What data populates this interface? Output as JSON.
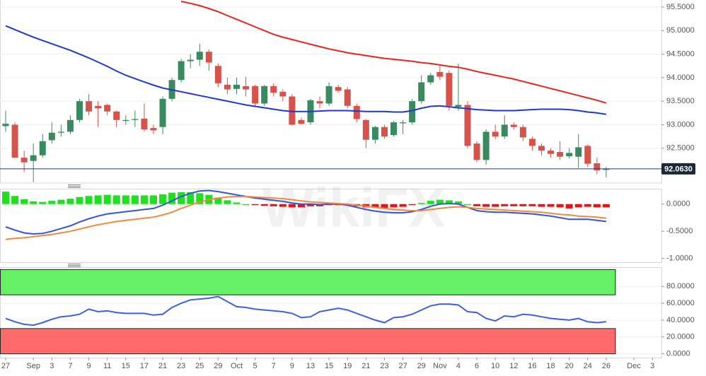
{
  "chart_data": [
    {
      "type": "candlestick",
      "watermark": "WikiFX",
      "categories": [
        "27",
        null,
        null,
        "Sep",
        null,
        "3",
        null,
        "7",
        null,
        "9",
        null,
        "11",
        null,
        "15",
        null,
        "17",
        null,
        "21",
        null,
        "23",
        null,
        "25",
        null,
        "29",
        null,
        "Oct",
        null,
        "5",
        null,
        "7",
        null,
        "9",
        null,
        "13",
        null,
        "15",
        null,
        "19",
        null,
        "21",
        null,
        "23",
        null,
        "27",
        null,
        "29",
        null,
        "Nov",
        null,
        "4",
        null,
        "6",
        null,
        "10",
        null,
        "12",
        null,
        "16",
        null,
        "18",
        null,
        "20",
        null,
        "24",
        null,
        "26",
        null,
        null,
        "Dec",
        null,
        "3"
      ],
      "open": [
        92.97,
        93.0,
        92.3,
        92.23,
        92.35,
        92.67,
        92.83,
        92.85,
        93.1,
        93.5,
        93.4,
        93.42,
        93.28,
        93.08,
        93.1,
        93.13,
        92.93,
        92.95,
        93.55,
        93.95,
        94.35,
        94.38,
        94.55,
        94.25,
        93.85,
        93.76,
        93.82,
        93.82,
        93.45,
        93.82,
        93.7,
        93.6,
        93.1,
        93.05,
        93.5,
        93.45,
        93.8,
        93.75,
        93.4,
        93.1,
        92.68,
        92.95,
        92.78,
        93.03,
        93.05,
        93.5,
        93.9,
        94.12,
        94.1,
        93.38,
        93.42,
        92.6,
        92.25,
        92.85,
        92.75,
        93.0,
        92.95,
        92.7,
        92.55,
        92.45,
        92.42,
        92.33,
        92.32,
        92.55,
        92.18,
        92.04,
        null,
        null,
        null,
        null,
        null
      ],
      "high": [
        93.3,
        93.05,
        92.45,
        92.6,
        92.8,
        93.05,
        93.0,
        93.2,
        93.55,
        93.65,
        93.5,
        93.45,
        93.3,
        93.2,
        93.3,
        93.45,
        93.0,
        93.6,
        94.0,
        94.4,
        94.5,
        94.72,
        94.6,
        94.3,
        94.0,
        94.0,
        94.02,
        93.85,
        93.85,
        93.88,
        93.75,
        93.65,
        93.15,
        93.55,
        93.6,
        93.9,
        93.85,
        93.8,
        93.45,
        93.12,
        92.98,
        93.0,
        93.08,
        93.1,
        93.55,
        94.05,
        94.1,
        94.25,
        94.15,
        94.3,
        93.5,
        92.65,
        92.9,
        93.0,
        93.2,
        93.05,
        93.0,
        92.75,
        92.6,
        92.5,
        92.65,
        92.5,
        92.8,
        92.58,
        92.3,
        92.1,
        null,
        null,
        null,
        null,
        null
      ],
      "low": [
        92.85,
        92.3,
        92.0,
        91.78,
        92.3,
        92.6,
        92.75,
        92.8,
        93.05,
        93.2,
        92.95,
        93.2,
        92.95,
        93.0,
        92.95,
        92.85,
        92.8,
        92.8,
        93.5,
        93.9,
        94.2,
        94.25,
        94.15,
        93.8,
        93.65,
        93.65,
        93.6,
        93.4,
        93.4,
        93.6,
        93.5,
        92.98,
        93.0,
        93.0,
        93.35,
        93.4,
        93.68,
        93.35,
        93.05,
        92.5,
        92.6,
        92.7,
        92.75,
        92.8,
        93.0,
        93.45,
        93.85,
        93.95,
        93.3,
        93.3,
        92.5,
        92.2,
        92.15,
        92.7,
        92.7,
        92.9,
        92.65,
        92.45,
        92.35,
        92.3,
        92.25,
        92.28,
        92.08,
        92.1,
        91.95,
        91.88,
        null,
        null,
        null,
        null,
        null
      ],
      "close": [
        93.02,
        92.3,
        92.2,
        92.35,
        92.65,
        92.83,
        92.85,
        93.1,
        93.5,
        93.28,
        93.35,
        93.28,
        93.1,
        93.1,
        93.12,
        92.9,
        92.88,
        93.55,
        93.95,
        94.35,
        94.38,
        94.55,
        94.32,
        93.88,
        93.75,
        93.85,
        93.75,
        93.45,
        93.82,
        93.68,
        93.6,
        93.0,
        93.02,
        93.52,
        93.45,
        93.82,
        93.72,
        93.4,
        93.12,
        92.68,
        92.95,
        92.75,
        93.05,
        93.05,
        93.5,
        93.9,
        94.05,
        94.02,
        93.4,
        93.42,
        92.55,
        92.25,
        92.85,
        92.75,
        93.0,
        92.95,
        92.73,
        92.55,
        92.45,
        92.38,
        92.32,
        92.4,
        92.52,
        92.17,
        92.03,
        92.06,
        null,
        null,
        null,
        null,
        null
      ],
      "up_color": "#3a8a5f",
      "down_color": "#d6534c",
      "overlays": [
        {
          "color": "#2038d0",
          "values": [
            95.1,
            95.02,
            94.94,
            94.86,
            94.79,
            94.72,
            94.65,
            94.58,
            94.5,
            94.42,
            94.33,
            94.24,
            94.14,
            94.05,
            93.98,
            93.91,
            93.84,
            93.78,
            93.74,
            93.7,
            93.66,
            93.62,
            93.58,
            93.54,
            93.5,
            93.46,
            93.42,
            93.39,
            93.36,
            93.33,
            93.3,
            93.28,
            93.28,
            93.28,
            93.29,
            93.3,
            93.3,
            93.3,
            93.29,
            93.28,
            93.28,
            93.28,
            93.27,
            93.27,
            93.3,
            93.35,
            93.39,
            93.4,
            93.38,
            93.36,
            93.34,
            93.32,
            93.31,
            93.3,
            93.3,
            93.3,
            93.31,
            93.32,
            93.33,
            93.33,
            93.33,
            93.32,
            93.3,
            93.27,
            93.25,
            93.22,
            null,
            null,
            null,
            null,
            null
          ]
        },
        {
          "color": "#e8241e",
          "values": [
            null,
            null,
            null,
            null,
            null,
            null,
            null,
            null,
            null,
            null,
            null,
            null,
            null,
            null,
            null,
            null,
            null,
            null,
            null,
            95.62,
            95.58,
            95.53,
            95.47,
            95.4,
            95.32,
            95.24,
            95.16,
            95.08,
            95.0,
            94.92,
            94.86,
            94.81,
            94.76,
            94.71,
            94.66,
            94.61,
            94.57,
            94.53,
            94.5,
            94.47,
            94.44,
            94.41,
            94.39,
            94.37,
            94.35,
            94.32,
            94.3,
            94.27,
            94.24,
            94.22,
            94.18,
            94.13,
            94.09,
            94.05,
            94.01,
            93.97,
            93.92,
            93.87,
            93.82,
            93.77,
            93.72,
            93.67,
            93.62,
            93.57,
            93.52,
            93.46,
            null,
            null,
            null,
            null,
            null
          ]
        }
      ],
      "last_price": {
        "value": 92.063,
        "label": "92.0630"
      },
      "ylim": [
        91.76,
        95.65
      ],
      "yticks": [
        {
          "value": 92.5,
          "label": "92.5000"
        },
        {
          "value": 93,
          "label": "93.0000"
        },
        {
          "value": 93.5,
          "label": "93.5000"
        },
        {
          "value": 94,
          "label": "94.0000"
        },
        {
          "value": 94.5,
          "label": "94.5000"
        },
        {
          "value": 95,
          "label": "95.0000"
        },
        {
          "value": 95.5,
          "label": "95.5000"
        }
      ],
      "grid": true
    },
    {
      "type": "macd",
      "histogram": {
        "up_color": "#1fe01f",
        "down_color": "#ee1111",
        "values": [
          0.23,
          0.15,
          0.09,
          0.05,
          0.04,
          0.06,
          0.08,
          0.1,
          0.13,
          0.15,
          0.16,
          0.17,
          0.16,
          0.16,
          0.16,
          0.16,
          0.16,
          0.18,
          0.21,
          0.22,
          0.22,
          0.2,
          0.17,
          0.12,
          0.07,
          0.03,
          0.0,
          -0.02,
          -0.03,
          -0.04,
          -0.05,
          -0.06,
          -0.06,
          -0.04,
          -0.04,
          -0.02,
          -0.01,
          -0.02,
          -0.04,
          -0.06,
          -0.07,
          -0.07,
          -0.06,
          -0.05,
          -0.02,
          0.02,
          0.06,
          0.08,
          0.07,
          0.05,
          0.0,
          -0.04,
          -0.05,
          -0.05,
          -0.04,
          -0.04,
          -0.04,
          -0.04,
          -0.05,
          -0.05,
          -0.06,
          -0.08,
          -0.06,
          -0.05,
          -0.06,
          -0.06,
          null,
          null,
          null,
          null,
          null
        ]
      },
      "series": [
        {
          "color": "#3553dd",
          "values": [
            -0.42,
            -0.48,
            -0.53,
            -0.55,
            -0.54,
            -0.5,
            -0.45,
            -0.4,
            -0.33,
            -0.27,
            -0.22,
            -0.18,
            -0.16,
            -0.14,
            -0.12,
            -0.1,
            -0.08,
            -0.02,
            0.06,
            0.14,
            0.2,
            0.24,
            0.25,
            0.23,
            0.2,
            0.17,
            0.14,
            0.11,
            0.09,
            0.07,
            0.05,
            0.02,
            0.0,
            0.0,
            -0.01,
            0.0,
            0.0,
            -0.02,
            -0.06,
            -0.1,
            -0.13,
            -0.15,
            -0.16,
            -0.16,
            -0.14,
            -0.1,
            -0.04,
            0.0,
            0.01,
            0.0,
            -0.06,
            -0.12,
            -0.14,
            -0.15,
            -0.15,
            -0.16,
            -0.17,
            -0.18,
            -0.2,
            -0.22,
            -0.25,
            -0.28,
            -0.28,
            -0.28,
            -0.3,
            -0.32,
            null,
            null,
            null,
            null,
            null
          ]
        },
        {
          "color": "#f08a3c",
          "values": [
            -0.65,
            -0.63,
            -0.62,
            -0.6,
            -0.58,
            -0.56,
            -0.53,
            -0.5,
            -0.46,
            -0.42,
            -0.38,
            -0.35,
            -0.32,
            -0.3,
            -0.28,
            -0.26,
            -0.24,
            -0.2,
            -0.15,
            -0.08,
            -0.02,
            0.04,
            0.08,
            0.11,
            0.13,
            0.14,
            0.14,
            0.13,
            0.12,
            0.11,
            0.1,
            0.08,
            0.06,
            0.04,
            0.03,
            0.02,
            0.01,
            0.0,
            -0.02,
            -0.04,
            -0.06,
            -0.08,
            -0.1,
            -0.11,
            -0.12,
            -0.12,
            -0.1,
            -0.08,
            -0.06,
            -0.05,
            -0.06,
            -0.08,
            -0.09,
            -0.1,
            -0.11,
            -0.12,
            -0.13,
            -0.14,
            -0.15,
            -0.17,
            -0.19,
            -0.2,
            -0.22,
            -0.23,
            -0.24,
            -0.26,
            null,
            null,
            null,
            null,
            null
          ]
        }
      ],
      "ylim": [
        -1.07,
        0.27
      ],
      "yticks": [
        {
          "value": -1,
          "label": "-1.0000"
        },
        {
          "value": -0.5,
          "label": "-0.5000"
        },
        {
          "value": 0,
          "label": "0.0000"
        }
      ],
      "grid": false
    },
    {
      "type": "line",
      "zones": [
        {
          "from": 70,
          "to": 100,
          "color": "#66f066"
        },
        {
          "from": 0,
          "to": 30,
          "color": "#ff6b6b"
        }
      ],
      "series": [
        {
          "color": "#3f5fe0",
          "values": [
            42,
            38,
            35,
            34,
            37,
            41,
            44,
            45,
            47,
            53,
            50,
            51,
            49,
            48,
            48,
            48,
            46,
            47,
            55,
            60,
            64,
            65,
            66,
            68,
            62,
            56,
            55,
            53,
            52,
            51,
            50,
            48,
            43,
            44,
            50,
            52,
            54,
            52,
            48,
            44,
            40,
            37,
            43,
            44,
            47,
            52,
            57,
            59,
            59,
            58,
            50,
            49,
            42,
            39,
            45,
            44,
            47,
            46,
            44,
            42,
            41,
            40,
            42,
            38,
            37,
            38,
            null,
            null,
            null,
            null,
            null
          ]
        }
      ],
      "ylim": [
        -4.5,
        102
      ],
      "yticks": [
        {
          "value": 0,
          "label": "0.0000"
        },
        {
          "value": 20,
          "label": "20.0000"
        },
        {
          "value": 40,
          "label": "40.0000"
        },
        {
          "value": 60,
          "label": "60.0000"
        },
        {
          "value": 80,
          "label": "80.0000"
        }
      ],
      "grid": true
    }
  ]
}
